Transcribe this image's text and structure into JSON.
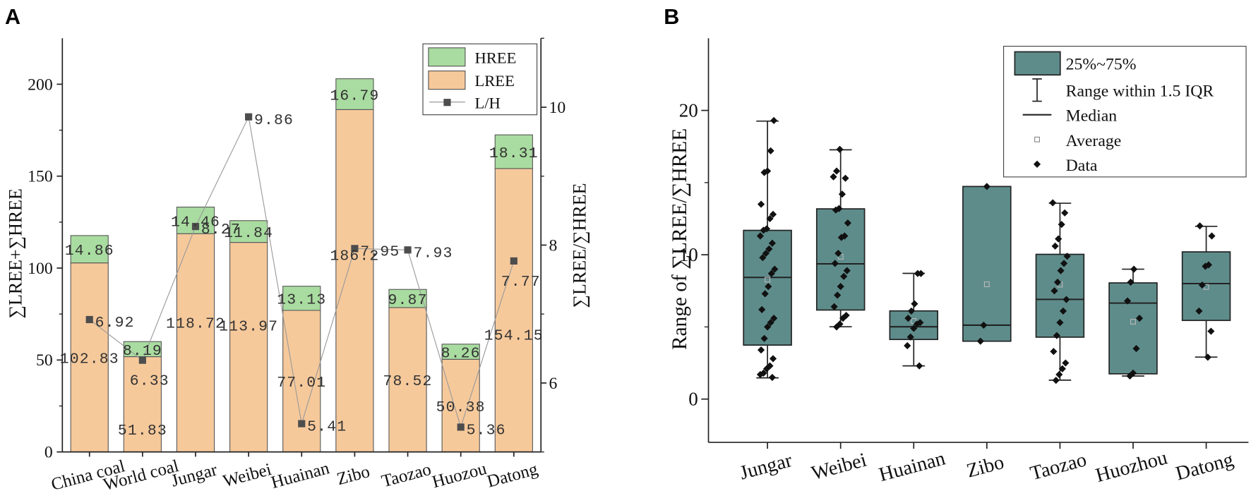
{
  "figure": {
    "panel_a_label": "A",
    "panel_b_label": "B"
  },
  "colors": {
    "hree": "#a9dca0",
    "lree": "#f6c99b",
    "line": "#9a9a9a",
    "marker": "#4d4d4d",
    "box": "#5e8c8b",
    "axis": "#222222",
    "mean_marker": "#b8b8b8"
  },
  "chart_data": [
    {
      "type": "bar",
      "panel": "A",
      "stacked": true,
      "categories": [
        "China coal",
        "World coal",
        "Jungar",
        "Weibei",
        "Huainan",
        "Zibo",
        "Taozao",
        "Huozou",
        "Datong"
      ],
      "series": [
        {
          "name": "LREE",
          "values": [
            102.83,
            51.83,
            118.72,
            113.97,
            77.01,
            186.2,
            78.52,
            50.38,
            154.15
          ]
        },
        {
          "name": "HREE",
          "values": [
            14.86,
            8.19,
            14.46,
            11.84,
            13.13,
            16.79,
            9.87,
            8.26,
            18.31
          ]
        },
        {
          "name": "L/H",
          "type": "line",
          "axis": "right",
          "values": [
            6.92,
            6.33,
            8.27,
            9.86,
            5.41,
            7.95,
            7.93,
            5.36,
            7.77
          ]
        }
      ],
      "ylabel": "∑LREE+∑HREE",
      "y2label": "∑LREE/∑HREE",
      "ylim": [
        0,
        225
      ],
      "y2lim": [
        5,
        11
      ],
      "yticks": [
        0,
        50,
        100,
        150,
        200
      ],
      "y2ticks": [
        6,
        8,
        10
      ],
      "legend": {
        "placement": "top-right",
        "entries": [
          "HREE",
          "LREE",
          "L/H"
        ]
      }
    },
    {
      "type": "box",
      "panel": "B",
      "categories": [
        "Jungar",
        "Weibei",
        "Huainan",
        "Zibo",
        "Taozao",
        "Huozhou",
        "Datong"
      ],
      "ylabel": "Range of ∑LREE/∑HREE",
      "ylim": [
        -3,
        25
      ],
      "yticks": [
        0,
        10,
        20
      ],
      "boxes": [
        {
          "whisker_low": 1.47,
          "q1": 3.74,
          "median": 8.43,
          "q3": 11.69,
          "whisker_high": 19.26,
          "mean": 8.27,
          "points": [
            19.3,
            17.2,
            15.8,
            15.7,
            13.5,
            12.8,
            12.5,
            11.8,
            11.7,
            11.3,
            10.8,
            10.4,
            10.1,
            9.8,
            9.0,
            8.7,
            7.8,
            7.3,
            6.2,
            5.6,
            5.3,
            5.0,
            4.2,
            3.4,
            2.8,
            2.3,
            2.1,
            1.8,
            1.7,
            1.5
          ]
        },
        {
          "whisker_low": 5.01,
          "q1": 6.17,
          "median": 9.37,
          "q3": 13.18,
          "whisker_high": 17.27,
          "mean": 9.86,
          "points": [
            17.3,
            15.8,
            15.4,
            15.3,
            14.2,
            13.2,
            13.1,
            12.2,
            11.3,
            11.2,
            10.1,
            9.4,
            8.9,
            8.5,
            7.8,
            7.2,
            6.4,
            5.8,
            5.6,
            5.2,
            5.0
          ]
        },
        {
          "whisker_low": 2.3,
          "q1": 4.13,
          "median": 5.01,
          "q3": 6.11,
          "whisker_high": 8.71,
          "mean": 5.41,
          "points": [
            8.7,
            8.7,
            6.6,
            6.1,
            5.6,
            5.3,
            5.2,
            4.9,
            4.3,
            3.7,
            2.3
          ]
        },
        {
          "whisker_low": 4.01,
          "q1": 4.01,
          "median": 5.12,
          "q3": 14.73,
          "whisker_high": 14.73,
          "mean": 7.95,
          "points": [
            14.73,
            5.12,
            4.01
          ]
        },
        {
          "whisker_low": 1.31,
          "q1": 4.29,
          "median": 6.91,
          "q3": 10.03,
          "whisker_high": 13.57,
          "mean": 7.93,
          "points": [
            13.6,
            12.9,
            12.1,
            11.1,
            10.6,
            9.9,
            9.4,
            8.9,
            8.1,
            7.5,
            6.9,
            6.1,
            5.3,
            4.4,
            3.3,
            2.5,
            2.1,
            1.7,
            1.3
          ]
        },
        {
          "whisker_low": 1.6,
          "q1": 1.75,
          "median": 6.65,
          "q3": 8.05,
          "whisker_high": 9.0,
          "mean": 5.36,
          "points": [
            9.0,
            8.1,
            6.8,
            5.6,
            3.5,
            1.8,
            1.6
          ]
        },
        {
          "whisker_low": 2.91,
          "q1": 5.45,
          "median": 8.0,
          "q3": 10.2,
          "whisker_high": 11.97,
          "mean": 7.77,
          "points": [
            12.0,
            11.3,
            9.3,
            9.2,
            7.9,
            6.1,
            4.7,
            2.9
          ]
        }
      ],
      "legend": {
        "placement": "top-right",
        "entries": [
          "25%~75%",
          "Range within 1.5 IQR",
          "Median",
          "Average",
          "Data"
        ]
      }
    }
  ]
}
